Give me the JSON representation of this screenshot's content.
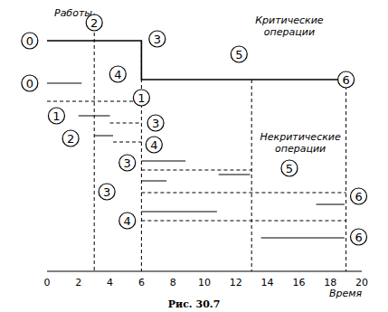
{
  "chart_data": {
    "type": "gantt",
    "caption": "Рис. 30.7",
    "x_label": "Время",
    "y_label": "Работы",
    "xlim": [
      0,
      20
    ],
    "xticks": [
      0,
      2,
      4,
      6,
      8,
      10,
      12,
      14,
      16,
      18,
      20
    ],
    "ylim": [
      0,
      29
    ],
    "tick_labels": "x",
    "color": "#000000",
    "segments": [
      {
        "x": [
          0,
          6,
          6,
          19
        ],
        "y": [
          25.5,
          25.5,
          21.2,
          21.2
        ],
        "line_style": "solid"
      },
      {
        "x": [
          3,
          3
        ],
        "y": [
          28.5,
          0
        ],
        "line_style": "dashed"
      },
      {
        "x": [
          6,
          6
        ],
        "y": [
          25.5,
          0
        ],
        "line_style": "dashed"
      },
      {
        "x": [
          13,
          13
        ],
        "y": [
          21.2,
          0
        ],
        "line_style": "dashed"
      },
      {
        "x": [
          19,
          19
        ],
        "y": [
          21.2,
          0
        ],
        "line_style": "dashed"
      },
      {
        "x": [
          0,
          2.2
        ],
        "y": [
          20.8,
          20.8
        ],
        "line_style": "solid"
      },
      {
        "x": [
          0,
          6
        ],
        "y": [
          18.8,
          18.8
        ],
        "line_style": "dashed"
      },
      {
        "x": [
          2,
          4
        ],
        "y": [
          17.2,
          17.2
        ],
        "line_style": "solid"
      },
      {
        "x": [
          4,
          6
        ],
        "y": [
          16.4,
          16.4
        ],
        "line_style": "dashed"
      },
      {
        "x": [
          3,
          4.2
        ],
        "y": [
          15,
          15
        ],
        "line_style": "solid"
      },
      {
        "x": [
          4.2,
          6
        ],
        "y": [
          14.3,
          14.3
        ],
        "line_style": "dashed"
      },
      {
        "x": [
          6,
          8.8
        ],
        "y": [
          12.2,
          12.2
        ],
        "line_style": "solid"
      },
      {
        "x": [
          6,
          13
        ],
        "y": [
          11.2,
          11.2
        ],
        "line_style": "dashed"
      },
      {
        "x": [
          10.9,
          12.9
        ],
        "y": [
          10.7,
          10.7
        ],
        "line_style": "solid"
      },
      {
        "x": [
          6,
          7.6
        ],
        "y": [
          10,
          10
        ],
        "line_style": "solid"
      },
      {
        "x": [
          6,
          19
        ],
        "y": [
          8.7,
          8.7
        ],
        "line_style": "dashed"
      },
      {
        "x": [
          17.1,
          18.9
        ],
        "y": [
          7.4,
          7.4
        ],
        "line_style": "solid"
      },
      {
        "x": [
          6,
          10.8
        ],
        "y": [
          6.6,
          6.6
        ],
        "line_style": "solid"
      },
      {
        "x": [
          6,
          19
        ],
        "y": [
          5.6,
          5.6
        ],
        "line_style": "dashed"
      },
      {
        "x": [
          13.6,
          18.9
        ],
        "y": [
          3.7,
          3.7
        ],
        "line_style": "solid"
      }
    ],
    "annotations": [
      {
        "text": "0",
        "x": -1.1,
        "y": 25.5,
        "marker": "circle"
      },
      {
        "text": "2",
        "x": 3,
        "y": 27.5,
        "marker": "circle"
      },
      {
        "text": "3",
        "x": 7,
        "y": 25.7,
        "marker": "circle"
      },
      {
        "text": "4",
        "x": 4.5,
        "y": 21.8,
        "marker": "circle"
      },
      {
        "text": "5",
        "x": 12.2,
        "y": 24,
        "marker": "circle"
      },
      {
        "text": "6",
        "x": 19,
        "y": 21.2,
        "marker": "circle"
      },
      {
        "text": "0",
        "x": -1.1,
        "y": 20.8,
        "marker": "circle"
      },
      {
        "text": "1",
        "x": 6,
        "y": 19.2,
        "marker": "circle"
      },
      {
        "text": "1",
        "x": 0.6,
        "y": 17.2,
        "marker": "circle"
      },
      {
        "text": "3",
        "x": 6.9,
        "y": 16.4,
        "marker": "circle"
      },
      {
        "text": "2",
        "x": 1.5,
        "y": 14.7,
        "marker": "circle"
      },
      {
        "text": "4",
        "x": 6.8,
        "y": 14,
        "marker": "circle"
      },
      {
        "text": "3",
        "x": 5.1,
        "y": 12,
        "marker": "circle"
      },
      {
        "text": "5",
        "x": 15.4,
        "y": 11.4,
        "marker": "circle"
      },
      {
        "text": "3",
        "x": 3.8,
        "y": 8.8,
        "marker": "circle"
      },
      {
        "text": "6",
        "x": 19.8,
        "y": 8.3,
        "marker": "circle"
      },
      {
        "text": "4",
        "x": 5.1,
        "y": 5.6,
        "marker": "circle"
      },
      {
        "text": "6",
        "x": 19.8,
        "y": 3.8,
        "marker": "circle"
      },
      {
        "text": "Критические",
        "x": 15.4,
        "y": 27.8
      },
      {
        "text": "операции",
        "x": 15.4,
        "y": 26.5
      },
      {
        "text": "Некритические",
        "x": 16.1,
        "y": 14.9
      },
      {
        "text": "операции",
        "x": 16.1,
        "y": 13.6
      }
    ]
  }
}
